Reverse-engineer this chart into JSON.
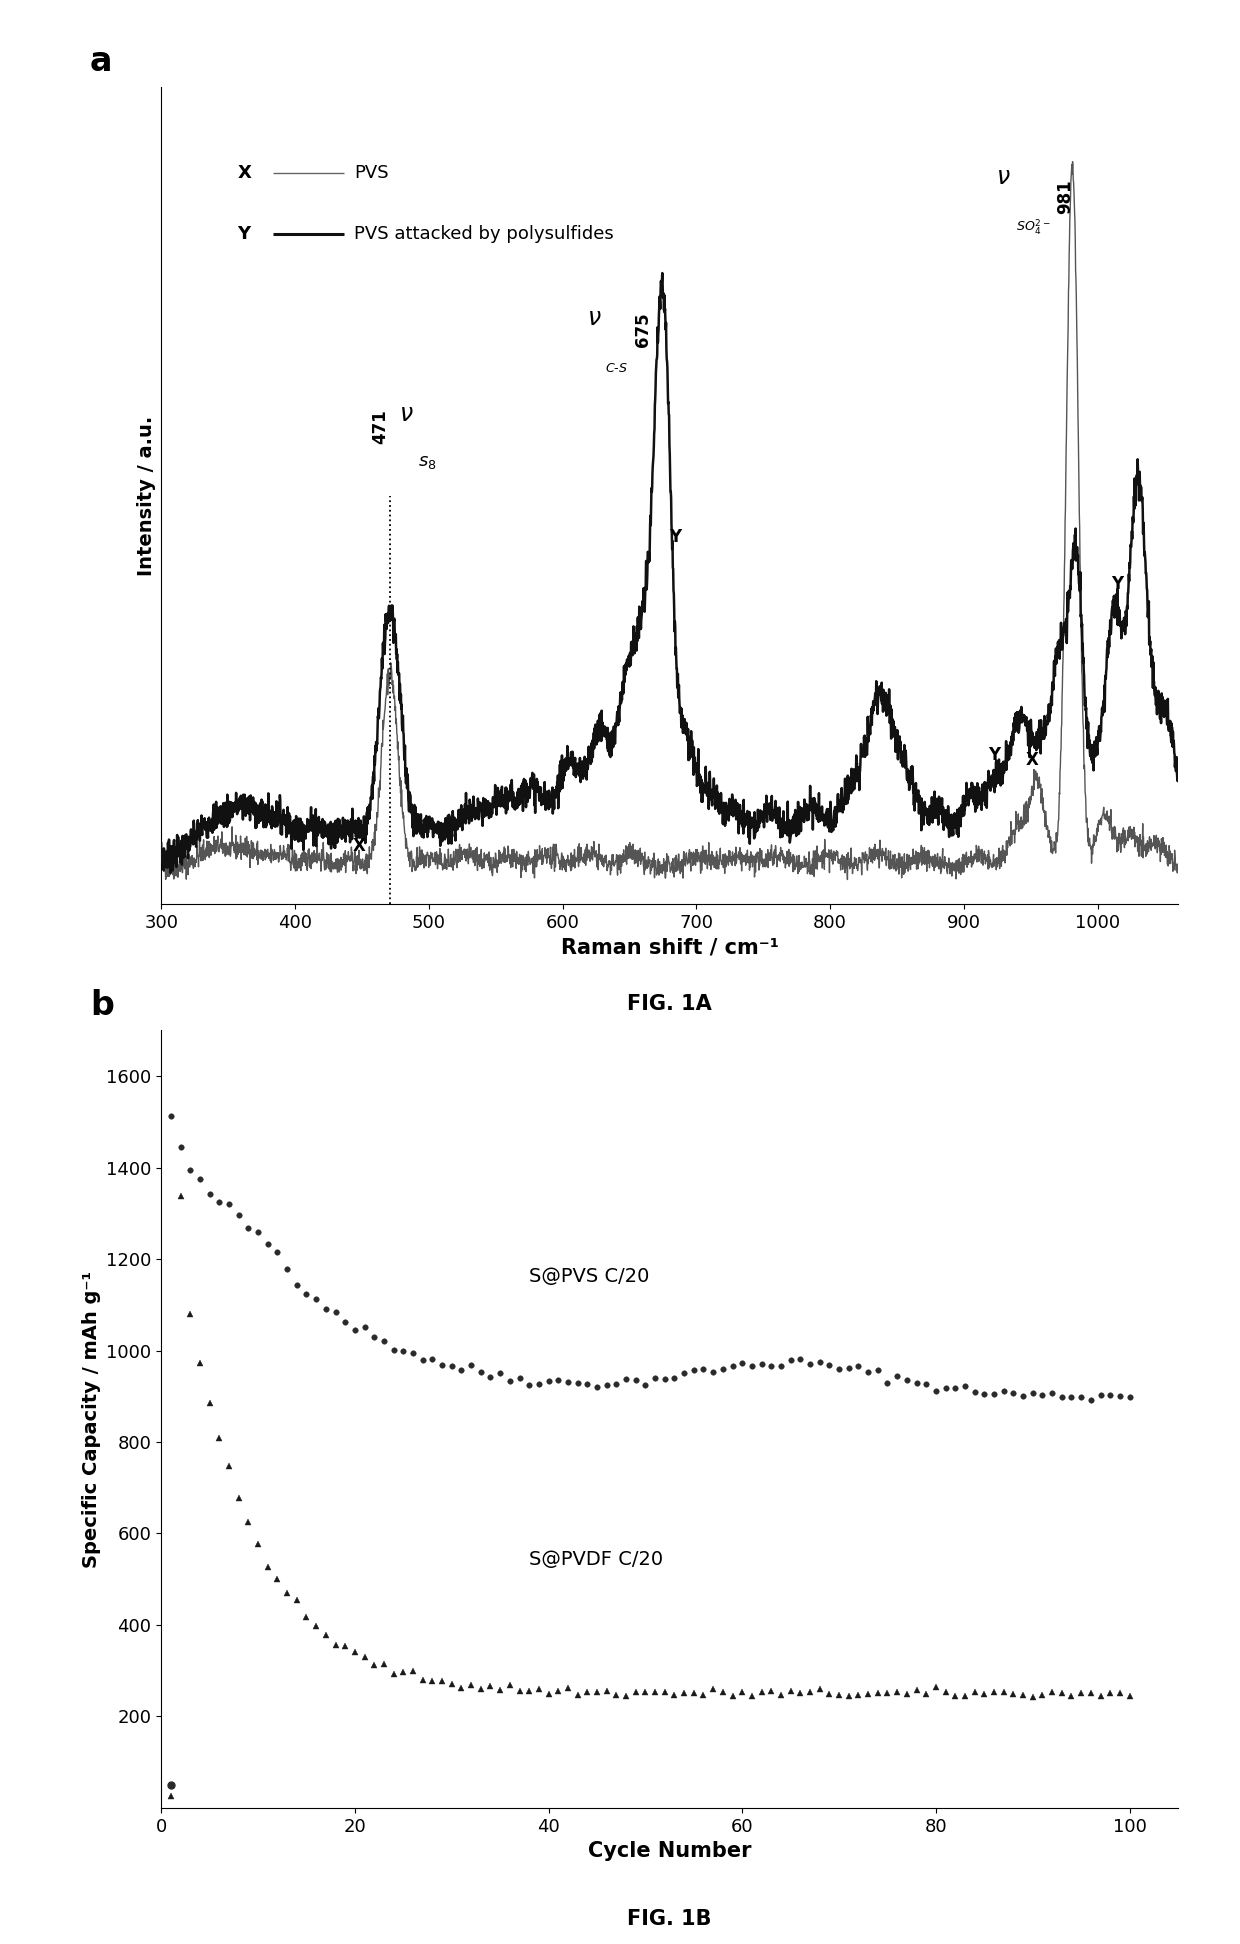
{
  "fig_width": 12.4,
  "fig_height": 19.44,
  "panel_a": {
    "xlabel": "Raman shift / cm⁻¹",
    "ylabel": "Intensity / a.u.",
    "xlim": [
      300,
      1060
    ],
    "xticks": [
      300,
      400,
      500,
      600,
      700,
      800,
      900,
      1000
    ],
    "line_X_color": "#555555",
    "line_Y_color": "#111111",
    "fig_label": "FIG. 1A"
  },
  "panel_b": {
    "xlabel": "Cycle Number",
    "ylabel": "Specific Capacity / mAh g⁻¹",
    "xlim": [
      0,
      105
    ],
    "ylim": [
      0,
      1700
    ],
    "xticks": [
      0,
      20,
      40,
      60,
      80,
      100
    ],
    "yticks": [
      200,
      400,
      600,
      800,
      1000,
      1200,
      1400,
      1600
    ],
    "label_pvs": "S@PVS C/20",
    "label_pvdf": "S@PVDF C/20",
    "fig_label": "FIG. 1B"
  }
}
